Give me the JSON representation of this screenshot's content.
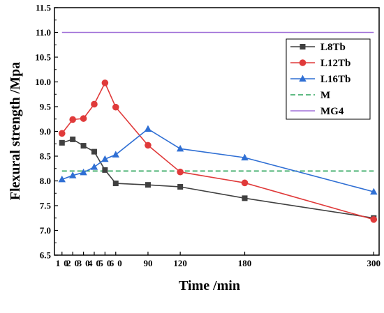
{
  "chart_data": {
    "type": "line",
    "xlabel": "Time /min",
    "ylabel": "Flexural strength /Mpa",
    "xlim": [
      3,
      305
    ],
    "ylim": [
      6.5,
      11.5
    ],
    "x_ticks": [
      10,
      20,
      30,
      40,
      50,
      60,
      90,
      120,
      180,
      300
    ],
    "x_tick_labels": [
      "10",
      "20",
      "30",
      "40",
      "50",
      "60",
      "90",
      "120",
      "180",
      "300"
    ],
    "y_ticks": [
      6.5,
      7.0,
      7.5,
      8.0,
      8.5,
      9.0,
      9.5,
      10.0,
      10.5,
      11.0,
      11.5
    ],
    "y_tick_labels": [
      "6.5",
      "7.0",
      "7.5",
      "8.0",
      "8.5",
      "9.0",
      "9.5",
      "10.0",
      "10.5",
      "11.0",
      "11.5"
    ],
    "grid": false,
    "legend_position": "top-right",
    "series": [
      {
        "name": "L8Tb",
        "color": "#404040",
        "marker": "square",
        "style": "solid",
        "x": [
          10,
          20,
          30,
          40,
          50,
          60,
          90,
          120,
          180,
          300
        ],
        "y": [
          8.77,
          8.84,
          8.71,
          8.59,
          8.22,
          7.95,
          7.92,
          7.88,
          7.65,
          7.25
        ]
      },
      {
        "name": "L12Tb",
        "color": "#e03a3a",
        "marker": "circle",
        "style": "solid",
        "x": [
          10,
          20,
          30,
          40,
          50,
          60,
          90,
          120,
          180,
          300
        ],
        "y": [
          8.96,
          9.24,
          9.26,
          9.55,
          9.98,
          9.49,
          8.72,
          8.18,
          7.96,
          7.22
        ]
      },
      {
        "name": "L16Tb",
        "color": "#2f6fd4",
        "marker": "triangle",
        "style": "solid",
        "x": [
          10,
          20,
          30,
          40,
          50,
          60,
          90,
          120,
          180,
          300
        ],
        "y": [
          8.03,
          8.11,
          8.17,
          8.28,
          8.44,
          8.53,
          9.05,
          8.65,
          8.47,
          7.78
        ]
      },
      {
        "name": "M",
        "color": "#2aa35a",
        "marker": "none",
        "style": "dashed",
        "x": [
          10,
          300
        ],
        "y": [
          8.2,
          8.2
        ]
      },
      {
        "name": "MG4",
        "color": "#a070d8",
        "marker": "none",
        "style": "solid",
        "x": [
          10,
          300
        ],
        "y": [
          11.0,
          11.0
        ]
      }
    ]
  }
}
